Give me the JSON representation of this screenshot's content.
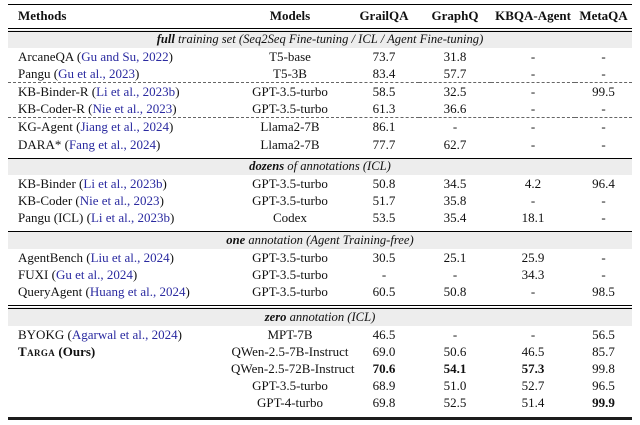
{
  "columns": [
    "Methods",
    "Models",
    "GrailQA",
    "GraphQ",
    "KBQA-Agent",
    "MetaQA"
  ],
  "sections": [
    {
      "lead": "full",
      "rest": "training set (Seq2Seq Fine-tuning / ICL / Agent Fine-tuning)"
    },
    {
      "lead": "dozens",
      "rest": "of annotations (ICL)"
    },
    {
      "lead": "one",
      "rest": "annotation (Agent Training-free)"
    },
    {
      "lead": "zero",
      "rest": "annotation (ICL)"
    }
  ],
  "rows": [
    {
      "method": "ArcaneQA",
      "cite": "Gu and Su, 2022",
      "model": "T5-base",
      "v": [
        "73.7",
        "31.8",
        "-",
        "-"
      ]
    },
    {
      "method": "Pangu",
      "cite": "Gu et al., 2023",
      "model": "T5-3B",
      "v": [
        "83.4",
        "57.7",
        "-",
        "-"
      ]
    },
    {
      "method": "KB-Binder-R",
      "cite": "Li et al., 2023b",
      "model": "GPT-3.5-turbo",
      "v": [
        "58.5",
        "32.5",
        "-",
        "99.5"
      ]
    },
    {
      "method": "KB-Coder-R",
      "cite": "Nie et al., 2023",
      "model": "GPT-3.5-turbo",
      "v": [
        "61.3",
        "36.6",
        "-",
        "-"
      ]
    },
    {
      "method": "KG-Agent",
      "cite": "Jiang et al., 2024",
      "model": "Llama2-7B",
      "v": [
        "86.1",
        "-",
        "-",
        "-"
      ]
    },
    {
      "method": "DARA*",
      "cite": "Fang et al., 2024",
      "model": "Llama2-7B",
      "v": [
        "77.7",
        "62.7",
        "-",
        "-"
      ]
    },
    {
      "method": "KB-Binder",
      "cite": "Li et al., 2023b",
      "model": "GPT-3.5-turbo",
      "v": [
        "50.8",
        "34.5",
        "4.2",
        "96.4"
      ]
    },
    {
      "method": "KB-Coder",
      "cite": "Nie et al., 2023",
      "model": "GPT-3.5-turbo",
      "v": [
        "51.7",
        "35.8",
        "-",
        "-"
      ]
    },
    {
      "method": "Pangu (ICL)",
      "cite": "Li et al., 2023b",
      "model": "Codex",
      "v": [
        "53.5",
        "35.4",
        "18.1",
        "-"
      ]
    },
    {
      "method": "AgentBench",
      "cite": "Liu et al., 2024",
      "model": "GPT-3.5-turbo",
      "v": [
        "30.5",
        "25.1",
        "25.9",
        "-"
      ]
    },
    {
      "method": "FUXI",
      "cite": "Gu et al., 2024",
      "model": "GPT-3.5-turbo",
      "v": [
        "-",
        "-",
        "34.3",
        "-"
      ]
    },
    {
      "method": "QueryAgent",
      "cite": "Huang et al., 2024",
      "model": "GPT-3.5-turbo",
      "v": [
        "60.5",
        "50.8",
        "-",
        "98.5"
      ]
    },
    {
      "method": "BYOKG",
      "cite": "Agarwal et al., 2024",
      "model": "MPT-7B",
      "v": [
        "46.5",
        "-",
        "-",
        "56.5"
      ]
    },
    {
      "method": "Targa",
      "suffix": "(Ours)",
      "model": "QWen-2.5-7B-Instruct",
      "v": [
        "69.0",
        "50.6",
        "46.5",
        "85.7"
      ]
    },
    {
      "method": "",
      "model": "QWen-2.5-72B-Instruct",
      "v": [
        "70.6",
        "54.1",
        "57.3",
        "99.8"
      ]
    },
    {
      "method": "",
      "model": "GPT-3.5-turbo",
      "v": [
        "68.9",
        "51.0",
        "52.7",
        "96.5"
      ]
    },
    {
      "method": "",
      "model": "GPT-4-turbo",
      "v": [
        "69.8",
        "52.5",
        "51.4",
        "99.9"
      ]
    }
  ],
  "colors": {
    "citation": "#2a2aa0",
    "band_bg": "#ededed"
  }
}
